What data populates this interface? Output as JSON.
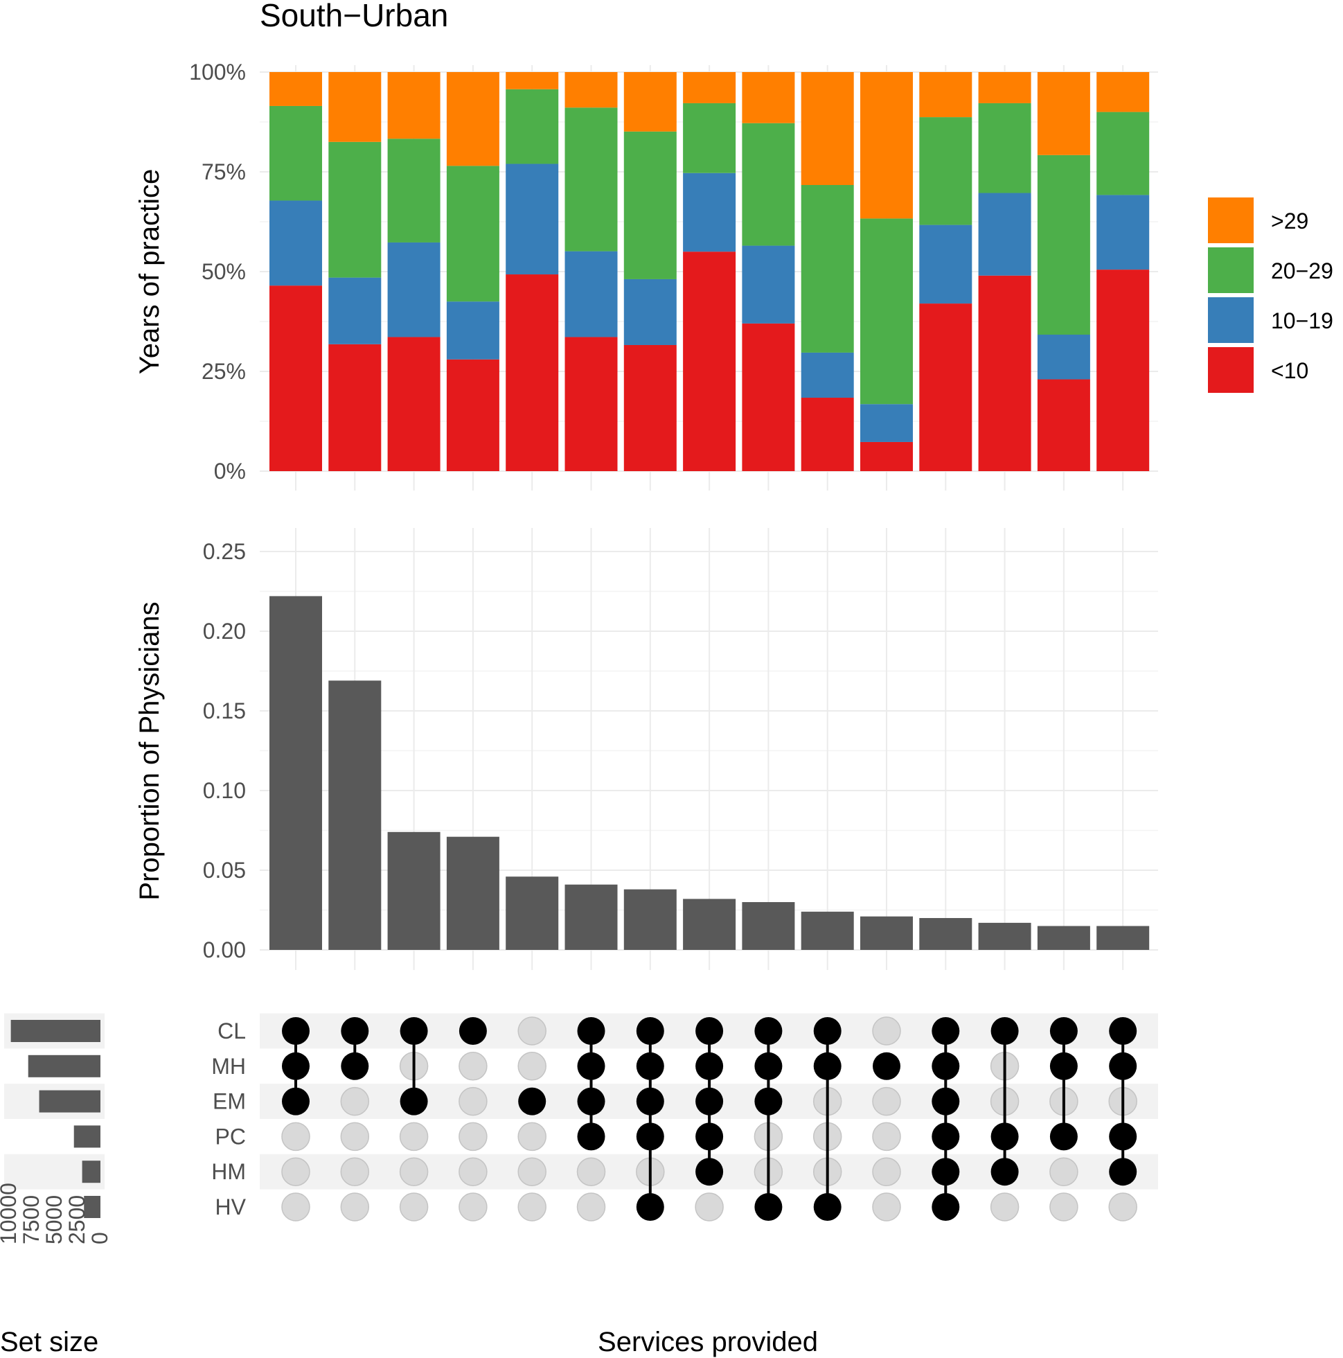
{
  "title": "South−Urban",
  "colors": {
    ">29": "#FF7F00",
    "20−29": "#4DAF4A",
    "10−19": "#377EB8",
    "<10": "#E41A1C",
    "bar": "#595959",
    "dot_on": "#000000",
    "dot_off": "#d9d9d9",
    "stripe": "#f2f2f2"
  },
  "chart_data": [
    {
      "type": "bar",
      "subtype": "stacked-proportion",
      "ylabel": "Years of practice",
      "ylim": [
        0,
        1
      ],
      "y_ticks": [
        "0%",
        "25%",
        "50%",
        "75%",
        "100%"
      ],
      "legend": {
        "placement": "right",
        "entries": [
          ">29",
          "20−29",
          "10−19",
          "<10"
        ]
      },
      "series": [
        {
          "name": "<10",
          "values": [
            0.465,
            0.318,
            0.336,
            0.28,
            0.493,
            0.336,
            0.316,
            0.55,
            0.37,
            0.184,
            0.073,
            0.42,
            0.49,
            0.23,
            0.505
          ]
        },
        {
          "name": "10−19",
          "values": [
            0.213,
            0.167,
            0.237,
            0.145,
            0.277,
            0.215,
            0.165,
            0.197,
            0.195,
            0.113,
            0.095,
            0.197,
            0.207,
            0.112,
            0.187
          ]
        },
        {
          "name": "20−29",
          "values": [
            0.237,
            0.34,
            0.26,
            0.34,
            0.187,
            0.36,
            0.37,
            0.175,
            0.307,
            0.42,
            0.465,
            0.27,
            0.225,
            0.45,
            0.208
          ]
        },
        {
          "name": ">29",
          "values": [
            0.085,
            0.175,
            0.167,
            0.235,
            0.043,
            0.089,
            0.149,
            0.078,
            0.128,
            0.283,
            0.367,
            0.113,
            0.078,
            0.208,
            0.1
          ]
        }
      ]
    },
    {
      "type": "bar",
      "ylabel": "Proportion of Physicians",
      "xlabel": "Services provided",
      "ylim": [
        0,
        0.25
      ],
      "y_ticks": [
        "0.00",
        "0.05",
        "0.10",
        "0.15",
        "0.20",
        "0.25"
      ],
      "values": [
        0.222,
        0.169,
        0.074,
        0.071,
        0.046,
        0.041,
        0.038,
        0.032,
        0.03,
        0.024,
        0.021,
        0.02,
        0.017,
        0.015,
        0.015
      ]
    },
    {
      "type": "table",
      "subtype": "upset-matrix",
      "sets": [
        "CL",
        "MH",
        "EM",
        "PC",
        "HM",
        "HV"
      ],
      "membership": [
        [
          1,
          1,
          1,
          0,
          0,
          0
        ],
        [
          1,
          1,
          0,
          0,
          0,
          0
        ],
        [
          1,
          0,
          1,
          0,
          0,
          0
        ],
        [
          1,
          0,
          0,
          0,
          0,
          0
        ],
        [
          0,
          0,
          1,
          0,
          0,
          0
        ],
        [
          1,
          1,
          1,
          1,
          0,
          0
        ],
        [
          1,
          1,
          1,
          1,
          0,
          1
        ],
        [
          1,
          1,
          1,
          1,
          1,
          0
        ],
        [
          1,
          1,
          1,
          0,
          0,
          1
        ],
        [
          1,
          1,
          0,
          0,
          0,
          1
        ],
        [
          0,
          1,
          0,
          0,
          0,
          0
        ],
        [
          1,
          1,
          1,
          1,
          1,
          1
        ],
        [
          1,
          0,
          0,
          1,
          1,
          0
        ],
        [
          1,
          1,
          0,
          1,
          0,
          0
        ],
        [
          1,
          1,
          0,
          1,
          1,
          0
        ]
      ]
    },
    {
      "type": "bar",
      "orientation": "horizontal",
      "xlabel": "Set size",
      "x_ticks": [
        "10000",
        "7500",
        "5000",
        "2500",
        "0"
      ],
      "categories": [
        "CL",
        "MH",
        "EM",
        "PC",
        "HM",
        "HV"
      ],
      "values": [
        9800,
        7900,
        6700,
        2900,
        2000,
        1800
      ],
      "xlim": [
        10000,
        0
      ]
    }
  ]
}
